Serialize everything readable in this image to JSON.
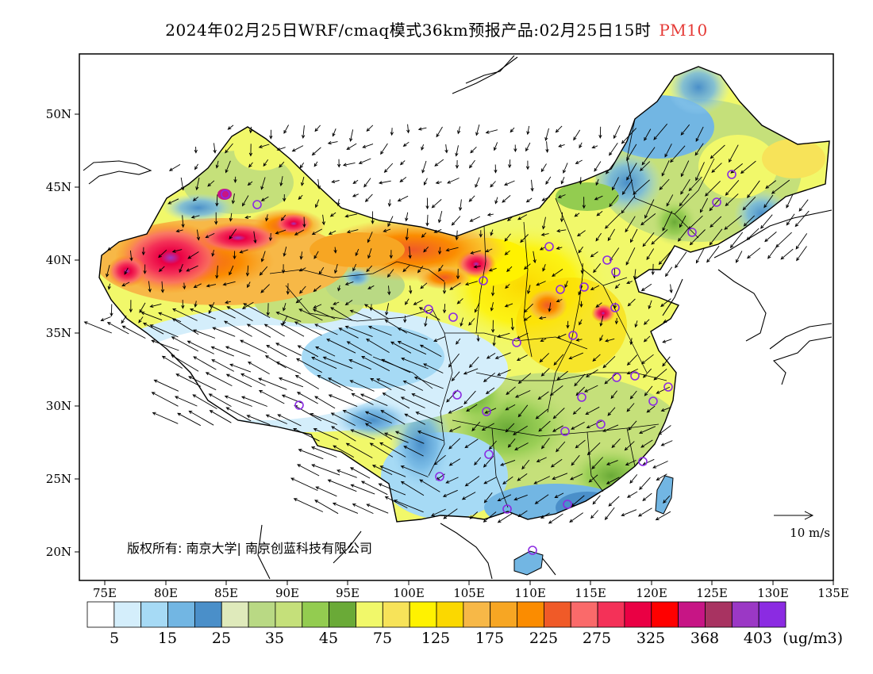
{
  "title": {
    "main": "2024年02月25日WRF/cmaq模式36km预报产品:02月25日15时",
    "highlight": "PM10",
    "highlight_color": "#e53935"
  },
  "axes": {
    "lat_labels": [
      "50N",
      "45N",
      "40N",
      "35N",
      "30N",
      "25N",
      "20N"
    ],
    "lon_labels": [
      "75E",
      "80E",
      "85E",
      "90E",
      "95E",
      "100E",
      "105E",
      "110E",
      "115E",
      "120E",
      "125E",
      "130E",
      "135E"
    ]
  },
  "copyright": "版权所有: 南京大学| 南京创蓝科技有限公司",
  "vector_legend": {
    "label": "10  m/s"
  },
  "colorbar": {
    "colors": [
      "#ffffff",
      "#d4eefb",
      "#a6daf5",
      "#72b6e3",
      "#4a8fc9",
      "#dfeabb",
      "#b9d984",
      "#c5e07a",
      "#93cc50",
      "#6aaa37",
      "#f1f86a",
      "#f7e359",
      "#fff200",
      "#fbd800",
      "#f7b847",
      "#f7a623",
      "#fb8c00",
      "#f05a28",
      "#fa6a6a",
      "#f43158",
      "#ea0044",
      "#ff0000",
      "#c71585",
      "#a83361",
      "#9b38c5",
      "#8b2be2"
    ],
    "tick_labels": [
      "5",
      "15",
      "25",
      "35",
      "45",
      "75",
      "125",
      "175",
      "225",
      "275",
      "325",
      "368",
      "403"
    ],
    "unit": "(ug/m3)"
  },
  "cities_count_note": ""
}
